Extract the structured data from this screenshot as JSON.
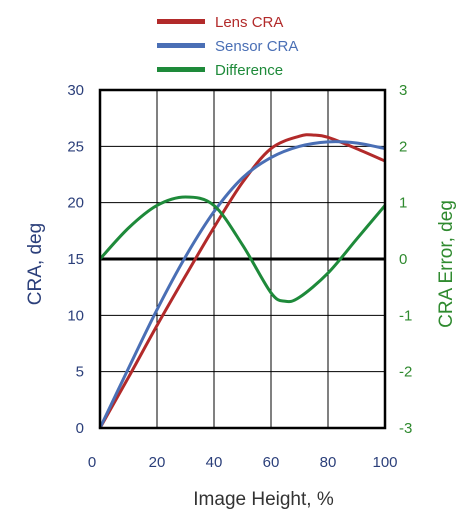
{
  "chart_data": {
    "type": "line",
    "title": "",
    "xlabel": "Image Height, %",
    "ylabel_left": "CRA, deg",
    "ylabel_right": "CRA Error, deg",
    "xlim": [
      0,
      100
    ],
    "ylim_left": [
      0,
      30
    ],
    "ylim_right": [
      -3,
      3
    ],
    "x_ticks": [
      "0",
      "20",
      "40",
      "60",
      "80",
      "100"
    ],
    "y_ticks_left": [
      "0",
      "5",
      "10",
      "15",
      "20",
      "25",
      "30"
    ],
    "y_ticks_right": [
      "-3",
      "-2",
      "-1",
      "0",
      "1",
      "2",
      "3"
    ],
    "grid": true,
    "legend_position": "top",
    "series": [
      {
        "name": "Lens CRA",
        "axis": "left",
        "color": "#b22a2a",
        "points": [
          [
            0,
            0
          ],
          [
            10,
            4.5
          ],
          [
            20,
            9.1
          ],
          [
            30,
            13.5
          ],
          [
            40,
            17.8
          ],
          [
            50,
            21.8
          ],
          [
            60,
            24.8
          ],
          [
            70,
            25.9
          ],
          [
            75,
            26.0
          ],
          [
            80,
            25.8
          ],
          [
            90,
            24.8
          ],
          [
            100,
            23.7
          ]
        ]
      },
      {
        "name": "Sensor CRA",
        "axis": "left",
        "color": "#4a6fb5",
        "points": [
          [
            0,
            0
          ],
          [
            10,
            5.3
          ],
          [
            20,
            10.5
          ],
          [
            30,
            15.2
          ],
          [
            40,
            19.2
          ],
          [
            50,
            22.2
          ],
          [
            60,
            24.0
          ],
          [
            70,
            25.0
          ],
          [
            80,
            25.4
          ],
          [
            90,
            25.3
          ],
          [
            100,
            24.8
          ]
        ]
      },
      {
        "name": "Difference",
        "axis": "right",
        "color": "#1e8a3a",
        "points": [
          [
            0,
            0
          ],
          [
            10,
            0.55
          ],
          [
            20,
            0.95
          ],
          [
            30,
            1.1
          ],
          [
            40,
            0.95
          ],
          [
            50,
            0.25
          ],
          [
            60,
            -0.6
          ],
          [
            65,
            -0.75
          ],
          [
            70,
            -0.68
          ],
          [
            80,
            -0.25
          ],
          [
            90,
            0.35
          ],
          [
            100,
            0.95
          ]
        ]
      }
    ]
  }
}
